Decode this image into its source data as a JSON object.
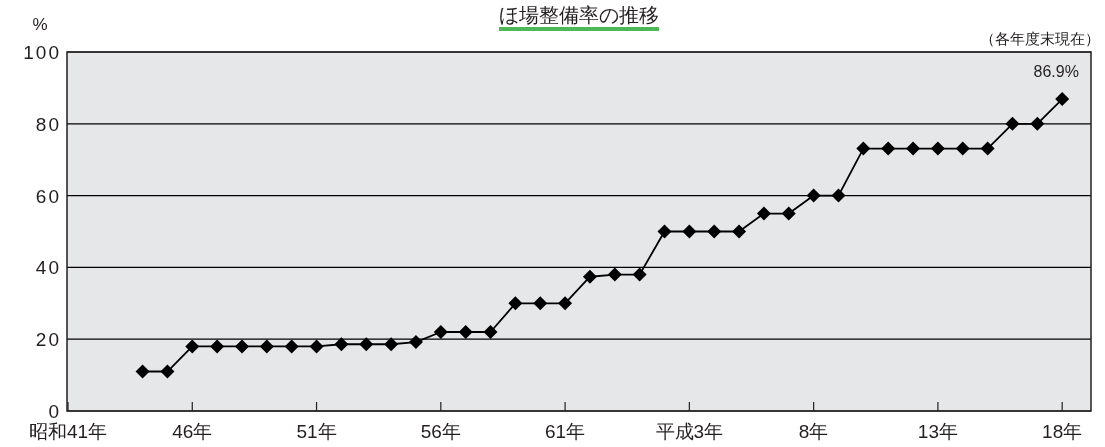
{
  "chart_data": {
    "type": "line",
    "title": "ほ場整備率の推移",
    "ylabel": "%",
    "annotations": [
      "（各年度末現在）"
    ],
    "categories": [
      "昭和41年",
      null,
      null,
      null,
      null,
      "46年",
      null,
      null,
      null,
      null,
      "51年",
      null,
      null,
      null,
      null,
      "56年",
      null,
      null,
      null,
      null,
      "61年",
      null,
      null,
      null,
      null,
      "平成3年",
      null,
      null,
      null,
      null,
      "8年",
      null,
      null,
      null,
      null,
      "13年",
      null,
      null,
      null,
      null,
      "18年"
    ],
    "series": [
      {
        "color": "#000000",
        "values": [
          null,
          null,
          null,
          11,
          11,
          18,
          18,
          18,
          18,
          18,
          18,
          18.6,
          18.6,
          18.6,
          19.2,
          22,
          22,
          22,
          30,
          30,
          30,
          37.4,
          38,
          38,
          50,
          50,
          50,
          50,
          55,
          55,
          60,
          60,
          73.1,
          73.1,
          73.1,
          73.1,
          73.1,
          73.1,
          80,
          80,
          86.9
        ],
        "value_labels": [
          null,
          null,
          null,
          null,
          null,
          null,
          null,
          null,
          null,
          null,
          null,
          null,
          null,
          null,
          null,
          null,
          null,
          null,
          null,
          null,
          null,
          null,
          null,
          null,
          null,
          null,
          null,
          null,
          null,
          null,
          null,
          null,
          null,
          null,
          null,
          null,
          null,
          null,
          null,
          null,
          "86.9%"
        ]
      }
    ],
    "ylim": [
      0,
      100
    ],
    "yticks": [
      0,
      20,
      40,
      60,
      80,
      100
    ],
    "grid": "y",
    "marker": "diamond",
    "line_style": "solid"
  }
}
